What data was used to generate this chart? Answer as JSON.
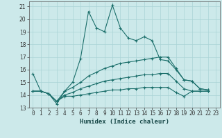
{
  "title": "",
  "xlabel": "Humidex (Indice chaleur)",
  "background_color": "#cce9ea",
  "grid_color": "#aad4d6",
  "line_color": "#1a6e6a",
  "xlim": [
    -0.5,
    23.5
  ],
  "ylim": [
    13,
    21.4
  ],
  "xticks": [
    0,
    1,
    2,
    3,
    4,
    5,
    6,
    7,
    8,
    9,
    10,
    11,
    12,
    13,
    14,
    15,
    16,
    17,
    18,
    19,
    20,
    21,
    22,
    23
  ],
  "yticks": [
    13,
    14,
    15,
    16,
    17,
    18,
    19,
    20,
    21
  ],
  "series": [
    [
      15.7,
      14.3,
      14.1,
      13.5,
      14.3,
      15.0,
      16.9,
      20.6,
      19.3,
      19.0,
      21.1,
      19.3,
      18.5,
      18.3,
      18.6,
      18.3,
      16.8,
      16.7,
      16.0,
      15.2,
      15.1,
      14.5,
      14.4
    ],
    [
      14.3,
      14.3,
      14.1,
      13.3,
      14.3,
      14.6,
      15.0,
      15.5,
      15.8,
      16.1,
      16.3,
      16.5,
      16.6,
      16.7,
      16.8,
      16.9,
      17.0,
      17.0,
      16.1,
      15.2,
      15.1,
      14.5,
      14.4
    ],
    [
      14.3,
      14.3,
      14.1,
      13.5,
      14.0,
      14.2,
      14.5,
      14.7,
      14.9,
      15.1,
      15.2,
      15.3,
      15.4,
      15.5,
      15.6,
      15.6,
      15.7,
      15.7,
      15.1,
      14.5,
      14.3,
      14.3,
      14.3
    ],
    [
      14.3,
      14.3,
      14.1,
      13.5,
      13.9,
      13.9,
      14.0,
      14.1,
      14.2,
      14.3,
      14.4,
      14.4,
      14.5,
      14.5,
      14.6,
      14.6,
      14.6,
      14.6,
      14.2,
      13.9,
      14.3,
      14.3,
      14.3
    ]
  ],
  "xlabel_fontsize": 6.5,
  "tick_fontsize": 5.5,
  "linewidth": 0.8,
  "markersize": 3.0
}
